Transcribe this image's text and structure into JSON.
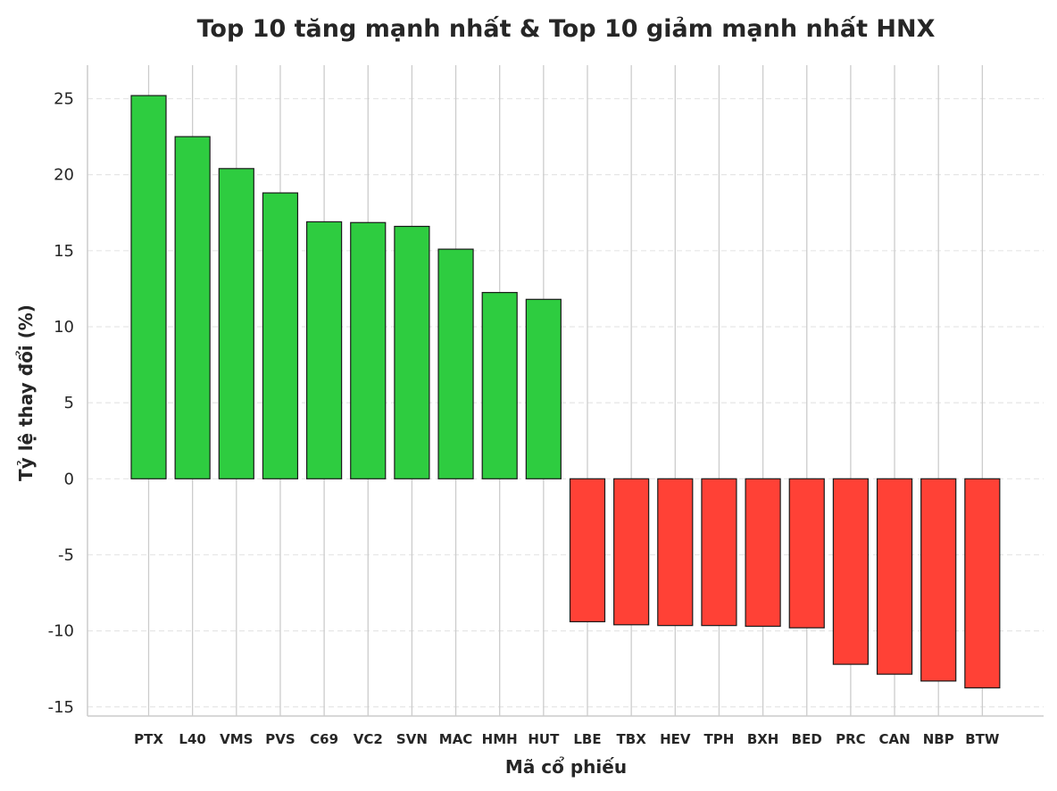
{
  "chart_data": {
    "type": "bar",
    "title": "Top 10 tăng mạnh nhất & Top 10 giảm mạnh nhất HNX",
    "xlabel": "Mã cổ phiếu",
    "ylabel": "Tỷ lệ thay đổi (%)",
    "categories": [
      "PTX",
      "L40",
      "VMS",
      "PVS",
      "C69",
      "VC2",
      "SVN",
      "MAC",
      "HMH",
      "HUT",
      "LBE",
      "TBX",
      "HEV",
      "TPH",
      "BXH",
      "BED",
      "PRC",
      "CAN",
      "NBP",
      "BTW"
    ],
    "values": [
      25.2,
      22.5,
      20.4,
      18.8,
      16.9,
      16.85,
      16.6,
      15.1,
      12.25,
      11.8,
      -9.4,
      -9.6,
      -9.65,
      -9.65,
      -9.7,
      -9.8,
      -12.2,
      -12.85,
      -13.3,
      -13.75
    ],
    "ylim": [
      -15.6,
      27.2
    ],
    "yticks": [
      25,
      20,
      15,
      10,
      5,
      0,
      -5,
      -10,
      -15
    ],
    "ytick_labels": [
      "25",
      "20",
      "15",
      "10",
      "5",
      "0",
      "-5",
      "-10",
      "-15"
    ],
    "grid": {
      "y": true,
      "y_style": "dashed",
      "x": true
    },
    "colors": {
      "positive": "#2ecc40",
      "negative": "#ff4136",
      "edge": "#1a1a1a",
      "grid": "#e6e6e6",
      "vline": "#cccccc",
      "spine": "#cccccc",
      "text": "#262626"
    }
  }
}
